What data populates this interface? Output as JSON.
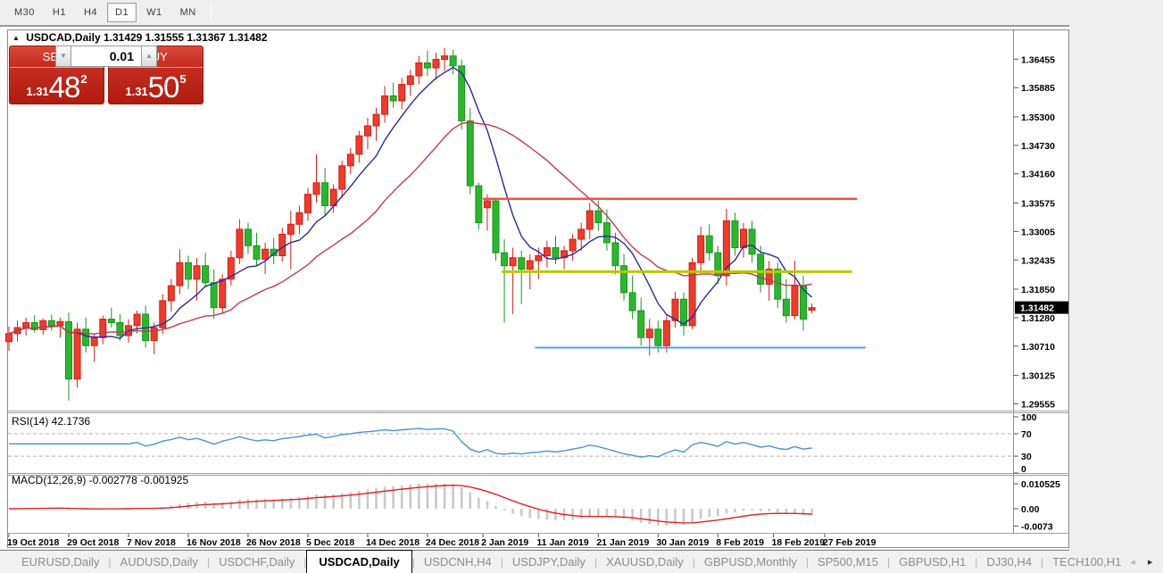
{
  "toolbar": {
    "timeframes": [
      "M30",
      "H1",
      "H4",
      "D1",
      "W1",
      "MN"
    ],
    "active": "D1"
  },
  "chart_header": {
    "symbol_title": "USDCAD,Daily",
    "ohlc_text": "1.31429 1.31555 1.31367 1.31482"
  },
  "trade_panel": {
    "sell_label": "SELL",
    "buy_label": "BUY",
    "volume": "0.01",
    "sell_price": {
      "prefix": "1.31",
      "big": "48",
      "sup": "2"
    },
    "buy_price": {
      "prefix": "1.31",
      "big": "50",
      "sup": "5"
    }
  },
  "tabs": {
    "items": [
      "EURUSD,Daily",
      "AUDUSD,Daily",
      "USDCHF,Daily",
      "USDCAD,Daily",
      "USDCNH,H4",
      "USDJPY,Daily",
      "XAUUSD,Daily",
      "GBPUSD,Monthly",
      "SP500,M15",
      "GBPUSD,H1",
      "DJ30,H4",
      "TECH100,H1"
    ],
    "active": "USDCAD,Daily"
  },
  "colors": {
    "bull_fill": "#e93d2e",
    "bull_border": "#d21f12",
    "bear_fill": "#2eb52e",
    "bear_border": "#18961c",
    "ma_fast": "#2a2a9e",
    "ma_slow": "#c23a52",
    "level_red": "#ff4d42",
    "level_yellow": "#b7c800",
    "level_blue": "#4da4e0",
    "rsi_line": "#4a94d6",
    "rsi_dash": "#b5b5b5",
    "macd_hist": "#c9c9c9",
    "macd_line": "#e01f1f",
    "badge_bg": "#000000",
    "badge_text": "#ffffff",
    "border": "#8a8a8a"
  },
  "chart_data": {
    "type": "candlestick",
    "symbol": "USDCAD",
    "timeframe": "Daily",
    "current": {
      "open": 1.31429,
      "high": 1.31555,
      "low": 1.31367,
      "close": 1.31482
    },
    "current_price_label": "1.31482",
    "ylim": [
      1.2942,
      1.3705
    ],
    "grid": false,
    "legend": false,
    "price_ticks": [
      "1.36455",
      "1.35885",
      "1.35300",
      "1.34730",
      "1.34160",
      "1.33575",
      "1.33005",
      "1.32435",
      "1.31850",
      "1.31280",
      "1.30710",
      "1.30125",
      "1.29555"
    ],
    "date_ticks": [
      {
        "label": "19 Oct 2018",
        "i": 0
      },
      {
        "label": "29 Oct 2018",
        "i": 7
      },
      {
        "label": "7 Nov 2018",
        "i": 14
      },
      {
        "label": "16 Nov 2018",
        "i": 21
      },
      {
        "label": "26 Nov 2018",
        "i": 28
      },
      {
        "label": "5 Dec 2018",
        "i": 35
      },
      {
        "label": "14 Dec 2018",
        "i": 42
      },
      {
        "label": "24 Dec 2018",
        "i": 49
      },
      {
        "label": "2 Jan 2019",
        "i": 55.5
      },
      {
        "label": "11 Jan 2019",
        "i": 62
      },
      {
        "label": "21 Jan 2019",
        "i": 69
      },
      {
        "label": "30 Jan 2019",
        "i": 76
      },
      {
        "label": "8 Feb 2019",
        "i": 83
      },
      {
        "label": "18 Feb 2019",
        "i": 89.5
      },
      {
        "label": "27 Feb 2019",
        "i": 95.5
      }
    ],
    "candles": [
      [
        1.308,
        1.311,
        1.3062,
        1.3096
      ],
      [
        1.3096,
        1.3122,
        1.308,
        1.3108
      ],
      [
        1.3108,
        1.3128,
        1.3092,
        1.3118
      ],
      [
        1.3118,
        1.3133,
        1.3098,
        1.3104
      ],
      [
        1.3104,
        1.3126,
        1.3094,
        1.3122
      ],
      [
        1.3122,
        1.3134,
        1.3102,
        1.3112
      ],
      [
        1.3112,
        1.3128,
        1.3088,
        1.312
      ],
      [
        1.312,
        1.3138,
        1.2962,
        1.3005
      ],
      [
        1.3005,
        1.3118,
        1.2988,
        1.3105
      ],
      [
        1.3105,
        1.3128,
        1.3058,
        1.3072
      ],
      [
        1.3072,
        1.3095,
        1.304,
        1.3088
      ],
      [
        1.3088,
        1.3132,
        1.3075,
        1.3125
      ],
      [
        1.3125,
        1.3148,
        1.3108,
        1.3118
      ],
      [
        1.3118,
        1.3135,
        1.3082,
        1.3092
      ],
      [
        1.3092,
        1.3125,
        1.3078,
        1.3112
      ],
      [
        1.3112,
        1.3142,
        1.3096,
        1.3135
      ],
      [
        1.3135,
        1.3152,
        1.3068,
        1.3082
      ],
      [
        1.3082,
        1.3118,
        1.3055,
        1.3108
      ],
      [
        1.3108,
        1.3175,
        1.3095,
        1.3162
      ],
      [
        1.3162,
        1.3205,
        1.314,
        1.3192
      ],
      [
        1.3192,
        1.3265,
        1.3175,
        1.3238
      ],
      [
        1.3238,
        1.3252,
        1.3185,
        1.3205
      ],
      [
        1.3205,
        1.3248,
        1.3162,
        1.3232
      ],
      [
        1.3232,
        1.3258,
        1.3188,
        1.3198
      ],
      [
        1.3198,
        1.3225,
        1.3125,
        1.3148
      ],
      [
        1.3148,
        1.3215,
        1.3135,
        1.3205
      ],
      [
        1.3205,
        1.3262,
        1.3192,
        1.3248
      ],
      [
        1.3248,
        1.3325,
        1.3235,
        1.3305
      ],
      [
        1.3305,
        1.3318,
        1.3255,
        1.3272
      ],
      [
        1.3272,
        1.3298,
        1.3232,
        1.3245
      ],
      [
        1.3245,
        1.3278,
        1.3215,
        1.3265
      ],
      [
        1.3265,
        1.3288,
        1.3235,
        1.3252
      ],
      [
        1.3252,
        1.3308,
        1.324,
        1.3295
      ],
      [
        1.3295,
        1.3342,
        1.3225,
        1.3315
      ],
      [
        1.3315,
        1.3352,
        1.3295,
        1.3338
      ],
      [
        1.3338,
        1.3388,
        1.3322,
        1.3375
      ],
      [
        1.3375,
        1.3455,
        1.3358,
        1.3398
      ],
      [
        1.3398,
        1.3428,
        1.3332,
        1.3352
      ],
      [
        1.3352,
        1.3395,
        1.3338,
        1.3385
      ],
      [
        1.3385,
        1.3442,
        1.3368,
        1.3432
      ],
      [
        1.3432,
        1.3468,
        1.3415,
        1.3455
      ],
      [
        1.3455,
        1.3502,
        1.3438,
        1.3492
      ],
      [
        1.3492,
        1.3528,
        1.3465,
        1.3512
      ],
      [
        1.3512,
        1.3548,
        1.3482,
        1.3535
      ],
      [
        1.3535,
        1.3592,
        1.3518,
        1.3572
      ],
      [
        1.3572,
        1.3598,
        1.3548,
        1.3562
      ],
      [
        1.3562,
        1.3608,
        1.3545,
        1.3595
      ],
      [
        1.3595,
        1.3625,
        1.3572,
        1.3612
      ],
      [
        1.3612,
        1.3652,
        1.3595,
        1.3638
      ],
      [
        1.3638,
        1.3662,
        1.3612,
        1.3628
      ],
      [
        1.3628,
        1.3658,
        1.3605,
        1.3645
      ],
      [
        1.3645,
        1.3668,
        1.3622,
        1.3652
      ],
      [
        1.3652,
        1.3664,
        1.3615,
        1.3632
      ],
      [
        1.3632,
        1.3645,
        1.3505,
        1.3522
      ],
      [
        1.3522,
        1.3548,
        1.3375,
        1.3392
      ],
      [
        1.3392,
        1.3398,
        1.3305,
        1.3318
      ],
      [
        1.3348,
        1.3375,
        1.3302,
        1.3362
      ],
      [
        1.3362,
        1.3368,
        1.3242,
        1.3258
      ],
      [
        1.3258,
        1.3285,
        1.3118,
        1.3232
      ],
      [
        1.3232,
        1.3268,
        1.3135,
        1.3248
      ],
      [
        1.3248,
        1.3262,
        1.3155,
        1.3225
      ],
      [
        1.3225,
        1.3255,
        1.3185,
        1.3242
      ],
      [
        1.3242,
        1.3268,
        1.3205,
        1.3252
      ],
      [
        1.3252,
        1.3282,
        1.3228,
        1.3268
      ],
      [
        1.3268,
        1.3292,
        1.3235,
        1.3248
      ],
      [
        1.3248,
        1.3272,
        1.3225,
        1.3262
      ],
      [
        1.3262,
        1.3295,
        1.3242,
        1.3285
      ],
      [
        1.3285,
        1.3318,
        1.3262,
        1.3305
      ],
      [
        1.3305,
        1.3358,
        1.3285,
        1.3342
      ],
      [
        1.3342,
        1.3362,
        1.3302,
        1.3318
      ],
      [
        1.3318,
        1.3345,
        1.3262,
        1.3278
      ],
      [
        1.3278,
        1.3298,
        1.3215,
        1.3232
      ],
      [
        1.3232,
        1.3255,
        1.3162,
        1.3178
      ],
      [
        1.3178,
        1.3212,
        1.3125,
        1.3142
      ],
      [
        1.3142,
        1.3168,
        1.3072,
        1.3088
      ],
      [
        1.3088,
        1.3125,
        1.3052,
        1.3105
      ],
      [
        1.3105,
        1.3122,
        1.3058,
        1.3072
      ],
      [
        1.3072,
        1.3135,
        1.3058,
        1.3122
      ],
      [
        1.3122,
        1.318,
        1.3108,
        1.3165
      ],
      [
        1.3165,
        1.3178,
        1.3092,
        1.3112
      ],
      [
        1.3112,
        1.3248,
        1.3105,
        1.3238
      ],
      [
        1.3238,
        1.331,
        1.3222,
        1.3292
      ],
      [
        1.3292,
        1.3315,
        1.3242,
        1.3258
      ],
      [
        1.3258,
        1.3272,
        1.3195,
        1.3212
      ],
      [
        1.3212,
        1.3346,
        1.3192,
        1.3322
      ],
      [
        1.3322,
        1.3338,
        1.3252,
        1.3268
      ],
      [
        1.3268,
        1.3318,
        1.3248,
        1.3305
      ],
      [
        1.3305,
        1.3322,
        1.3238,
        1.3255
      ],
      [
        1.3255,
        1.3272,
        1.3178,
        1.3195
      ],
      [
        1.3195,
        1.3242,
        1.3162,
        1.3225
      ],
      [
        1.3225,
        1.3238,
        1.3148,
        1.3165
      ],
      [
        1.3165,
        1.3205,
        1.3118,
        1.3132
      ],
      [
        1.3132,
        1.3242,
        1.3125,
        1.3192
      ],
      [
        1.3192,
        1.3212,
        1.3102,
        1.3125
      ],
      [
        1.3143,
        1.3156,
        1.3137,
        1.3148
      ]
    ],
    "overlays": {
      "ma_fast": {
        "period": 7,
        "method": "sma"
      },
      "ma_slow": {
        "period": 20,
        "method": "sma"
      },
      "hlines": [
        {
          "name": "resistance-line",
          "value": 1.3366,
          "from_i": 55.5,
          "to_i": 99.3,
          "colorKey": "level_red",
          "width": 2.5
        },
        {
          "name": "pivot-line",
          "value": 1.322,
          "from_i": 57.7,
          "to_i": 98.7,
          "colorKey": "level_yellow",
          "width": 3
        },
        {
          "name": "support-line",
          "value": 1.3068,
          "from_i": 61.6,
          "to_i": 100.3,
          "colorKey": "level_blue",
          "width": 2
        }
      ]
    },
    "rsi": {
      "label": "RSI(14) 42.1736",
      "period": 14,
      "last": 42.1736,
      "axis": [
        "100",
        "70",
        "30",
        "0"
      ],
      "upper": 70,
      "lower": 30
    },
    "macd": {
      "label": "MACD(12,26,9) -0.002778 -0.001925",
      "fast": 12,
      "slow": 26,
      "signal": 9,
      "last_macd": -0.002778,
      "last_signal": -0.001925,
      "axis": [
        "0.010525",
        "0.00",
        "-0.0073"
      ]
    }
  }
}
